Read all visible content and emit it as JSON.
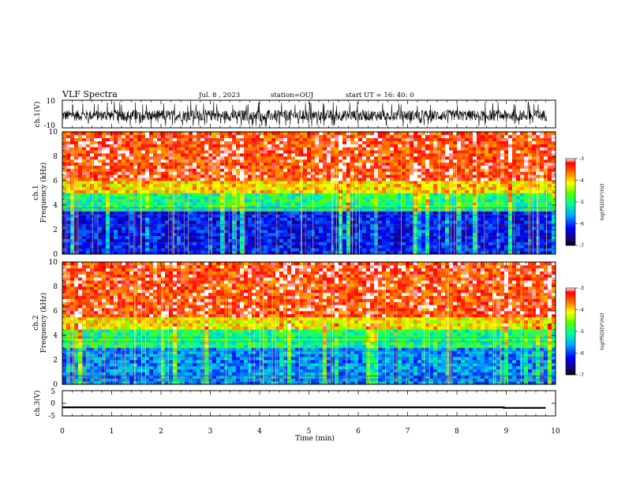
{
  "header": {
    "title": "VLF Spectra",
    "date": "Jul. 8 , 2023",
    "station": "station=OUJ",
    "start": "start UT =  16: 40: 0"
  },
  "chart_data": [
    {
      "type": "line",
      "panel": "ch1-waveform",
      "ylabel": "ch.1(V)",
      "ylim": [
        -10,
        10
      ],
      "yticks": [
        "10",
        "-10"
      ],
      "xlim": [
        0,
        10
      ]
    },
    {
      "type": "heatmap",
      "panel": "ch1-spectrogram",
      "ylabel_line1": "ch.1",
      "ylabel_line2": "Frequency (kHz)",
      "ylim": [
        0,
        10
      ],
      "yticks": [
        "0",
        "2",
        "4",
        "6",
        "8",
        "10"
      ],
      "xlim": [
        0,
        10
      ],
      "colorbar": {
        "label": "log(PSD)(V²/Hz)",
        "range": [
          -7,
          -3
        ],
        "ticks": [
          "-3",
          "-4",
          "-5",
          "-6",
          "-7"
        ]
      },
      "bands_kHz": [
        {
          "from": 0,
          "to": 3.5,
          "level": -6.2
        },
        {
          "from": 3.5,
          "to": 5.0,
          "level": -5.0
        },
        {
          "from": 5.0,
          "to": 6.0,
          "level": -4.0
        },
        {
          "from": 6.0,
          "to": 10,
          "level": -3.4
        }
      ]
    },
    {
      "type": "heatmap",
      "panel": "ch2-spectrogram",
      "ylabel_line1": "ch.2",
      "ylabel_line2": "Frequency (kHz)",
      "ylim": [
        0,
        10
      ],
      "yticks": [
        "0",
        "2",
        "4",
        "6",
        "8",
        "10"
      ],
      "xlim": [
        0,
        10
      ],
      "colorbar": {
        "label": "log(PSD)(V²/Hz)",
        "range": [
          -7,
          -3
        ],
        "ticks": [
          "-3",
          "-4",
          "-5",
          "-6",
          "-7"
        ]
      },
      "bands_kHz": [
        {
          "from": 0,
          "to": 3.0,
          "level": -5.7
        },
        {
          "from": 3.0,
          "to": 4.5,
          "level": -5.0
        },
        {
          "from": 4.5,
          "to": 5.5,
          "level": -4.1
        },
        {
          "from": 5.5,
          "to": 10,
          "level": -3.4
        }
      ]
    },
    {
      "type": "line",
      "panel": "ch3-waveform",
      "ylabel": "ch.3(V)",
      "ylim": [
        -5,
        5
      ],
      "yticks": [
        "5",
        "0",
        "-5"
      ],
      "xlim": [
        0,
        10
      ],
      "x": [
        0,
        8.95,
        8.95,
        9.8
      ],
      "y": [
        -1.6,
        -1.6,
        -1.8,
        -1.8
      ]
    }
  ],
  "xaxis": {
    "label": "Time (min)",
    "ticks": [
      "0",
      "1",
      "2",
      "3",
      "4",
      "5",
      "6",
      "7",
      "8",
      "9",
      "10"
    ]
  },
  "colors": {
    "background": "#ffffff",
    "ink": "#000000"
  }
}
